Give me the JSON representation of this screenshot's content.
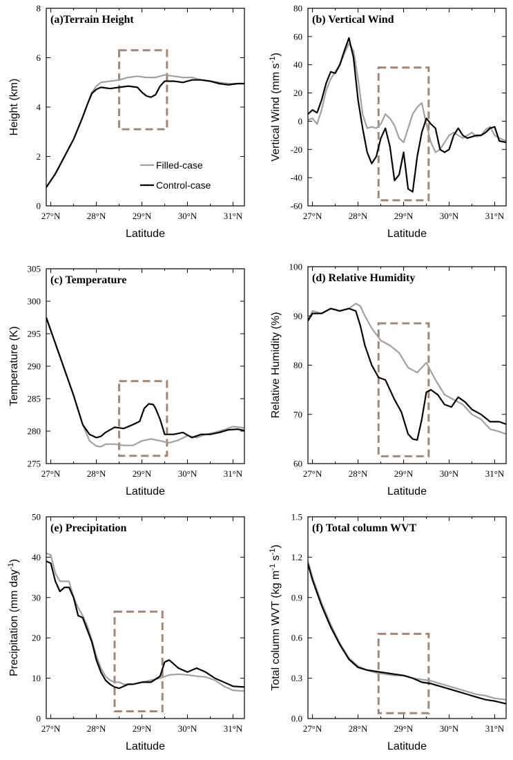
{
  "colors": {
    "filled": "#a0a0a0",
    "control": "#000000",
    "box": "#a58671"
  },
  "chart_data": [
    {
      "type": "line",
      "title": "(a)Terrain Height",
      "xlabel": "Latitude",
      "ylabel": "Height (km)",
      "xlim": [
        26.9,
        31.25
      ],
      "ylim": [
        0,
        8
      ],
      "xticks": [
        27,
        28,
        29,
        30,
        31
      ],
      "xtick_labels": [
        "27°N",
        "28°N",
        "29°N",
        "30°N",
        "31°N"
      ],
      "yticks": [
        0,
        2,
        4,
        6,
        8
      ],
      "ytick_labels": [
        "0",
        "2",
        "4",
        "6",
        "8"
      ],
      "legend": {
        "position": "center-right",
        "entries": [
          "Filled-case",
          "Control-case"
        ]
      },
      "highlight_box": {
        "x": [
          28.5,
          29.55
        ],
        "y": [
          3.1,
          6.3
        ]
      },
      "series": [
        {
          "name": "Filled-case",
          "color": "filled",
          "x": [
            26.9,
            27.1,
            27.3,
            27.5,
            27.7,
            27.8,
            27.9,
            28.0,
            28.1,
            28.3,
            28.5,
            28.7,
            28.9,
            29.1,
            29.3,
            29.5,
            29.7,
            29.9,
            30.1,
            30.3,
            30.5,
            30.7,
            30.9,
            31.1,
            31.25
          ],
          "y": [
            0.75,
            1.3,
            2.0,
            2.7,
            3.6,
            4.1,
            4.6,
            4.85,
            5.0,
            5.05,
            5.1,
            5.2,
            5.25,
            5.2,
            5.2,
            5.3,
            5.25,
            5.2,
            5.2,
            5.1,
            5.05,
            5.0,
            4.95,
            4.95,
            4.95
          ]
        },
        {
          "name": "Control-case",
          "color": "control",
          "x": [
            26.9,
            27.1,
            27.3,
            27.5,
            27.7,
            27.8,
            27.9,
            28.0,
            28.1,
            28.3,
            28.5,
            28.7,
            28.9,
            29.0,
            29.1,
            29.2,
            29.3,
            29.4,
            29.5,
            29.7,
            29.9,
            30.1,
            30.3,
            30.5,
            30.7,
            30.9,
            31.1,
            31.25
          ],
          "y": [
            0.75,
            1.3,
            2.0,
            2.7,
            3.6,
            4.1,
            4.55,
            4.72,
            4.8,
            4.75,
            4.8,
            4.85,
            4.8,
            4.6,
            4.45,
            4.4,
            4.5,
            4.85,
            5.05,
            5.05,
            5.0,
            5.1,
            5.1,
            5.05,
            4.95,
            4.9,
            4.95,
            4.95
          ]
        }
      ]
    },
    {
      "type": "line",
      "title": "(b) Vertical Wind",
      "xlabel": "Latitude",
      "ylabel": "Vertical Wind (mm s",
      "ylabel_sup": "-1",
      "ylabel_end": ")",
      "xlim": [
        26.9,
        31.25
      ],
      "ylim": [
        -60,
        80
      ],
      "xticks": [
        27,
        28,
        29,
        30,
        31
      ],
      "xtick_labels": [
        "27°N",
        "28°N",
        "29°N",
        "30°N",
        "31°N"
      ],
      "yticks": [
        -60,
        -40,
        -20,
        0,
        20,
        40,
        60,
        80
      ],
      "ytick_labels": [
        "-60",
        "-40",
        "-20",
        "0",
        "20",
        "40",
        "60",
        "80"
      ],
      "highlight_box": {
        "x": [
          28.45,
          29.55
        ],
        "y": [
          -56,
          38
        ]
      },
      "series": [
        {
          "name": "Filled-case",
          "color": "filled",
          "x": [
            26.9,
            27.0,
            27.1,
            27.2,
            27.3,
            27.4,
            27.5,
            27.6,
            27.7,
            27.8,
            27.9,
            28.0,
            28.1,
            28.2,
            28.3,
            28.4,
            28.5,
            28.6,
            28.7,
            28.8,
            28.9,
            29.0,
            29.1,
            29.2,
            29.3,
            29.4,
            29.5,
            29.6,
            29.7,
            29.8,
            29.9,
            30.0,
            30.1,
            30.2,
            30.3,
            30.4,
            30.5,
            30.6,
            30.7,
            30.8,
            30.9,
            31.0,
            31.1,
            31.25
          ],
          "y": [
            1,
            2,
            -2,
            8,
            22,
            30,
            35,
            40,
            48,
            55,
            50,
            30,
            5,
            -5,
            -4,
            -5,
            -2,
            5,
            2,
            -3,
            -12,
            -15,
            -5,
            5,
            10,
            13,
            -2,
            -15,
            -22,
            -20,
            -15,
            -10,
            -8,
            -10,
            -12,
            -10,
            -8,
            -11,
            -10,
            -6,
            -4,
            -10,
            -12,
            -14
          ]
        },
        {
          "name": "Control-case",
          "color": "control",
          "x": [
            26.9,
            27.0,
            27.1,
            27.2,
            27.3,
            27.4,
            27.5,
            27.6,
            27.7,
            27.8,
            27.9,
            28.0,
            28.1,
            28.2,
            28.3,
            28.4,
            28.5,
            28.6,
            28.7,
            28.8,
            28.9,
            29.0,
            29.1,
            29.2,
            29.3,
            29.4,
            29.5,
            29.6,
            29.7,
            29.8,
            29.9,
            30.0,
            30.1,
            30.2,
            30.3,
            30.4,
            30.5,
            30.6,
            30.7,
            30.8,
            30.9,
            31.0,
            31.1,
            31.25
          ],
          "y": [
            5,
            8,
            6,
            15,
            27,
            35,
            34,
            40,
            50,
            59,
            45,
            15,
            -5,
            -22,
            -30,
            -25,
            -12,
            -5,
            -18,
            -42,
            -38,
            -22,
            -48,
            -50,
            -25,
            -8,
            2,
            -2,
            -5,
            -20,
            -22,
            -20,
            -10,
            -5,
            -10,
            -12,
            -11,
            -10,
            -10,
            -8,
            -5,
            -4,
            -14,
            -15
          ]
        }
      ]
    },
    {
      "type": "line",
      "title": "(c) Temperature",
      "xlabel": "Latitude",
      "ylabel": "Temperature (K)",
      "xlim": [
        26.9,
        31.25
      ],
      "ylim": [
        275,
        305
      ],
      "xticks": [
        27,
        28,
        29,
        30,
        31
      ],
      "xtick_labels": [
        "27°N",
        "28°N",
        "29°N",
        "30°N",
        "31°N"
      ],
      "yticks": [
        275,
        280,
        285,
        290,
        295,
        300,
        305
      ],
      "ytick_labels": [
        "275",
        "280",
        "285",
        "290",
        "295",
        "300",
        "305"
      ],
      "highlight_box": {
        "x": [
          28.5,
          29.55
        ],
        "y": [
          276.2,
          287.7
        ]
      },
      "series": [
        {
          "name": "Filled-case",
          "color": "filled",
          "x": [
            26.9,
            27.1,
            27.3,
            27.5,
            27.7,
            27.85,
            28.0,
            28.1,
            28.2,
            28.4,
            28.6,
            28.8,
            29.0,
            29.2,
            29.4,
            29.6,
            29.8,
            30.0,
            30.2,
            30.4,
            30.6,
            30.8,
            31.0,
            31.25
          ],
          "y": [
            297.5,
            293.5,
            289.5,
            285.5,
            281,
            278.5,
            277.7,
            277.6,
            278,
            278,
            277.8,
            277.8,
            278.5,
            278.8,
            278.5,
            278.2,
            278.6,
            279.3,
            279.0,
            279.5,
            279.8,
            280.2,
            280.7,
            280.5
          ]
        },
        {
          "name": "Control-case",
          "color": "control",
          "x": [
            26.9,
            27.1,
            27.3,
            27.5,
            27.7,
            27.85,
            28.0,
            28.1,
            28.2,
            28.4,
            28.6,
            28.8,
            28.95,
            29.05,
            29.15,
            29.25,
            29.3,
            29.4,
            29.5,
            29.7,
            29.9,
            30.1,
            30.3,
            30.5,
            30.7,
            30.9,
            31.1,
            31.25
          ],
          "y": [
            297.5,
            293.5,
            289.5,
            285.5,
            281,
            279.5,
            279.0,
            279.2,
            279.8,
            280.6,
            280.4,
            281,
            281.5,
            283.5,
            284.2,
            284.1,
            283.5,
            281.8,
            279.5,
            279.5,
            279.8,
            279.0,
            279.5,
            279.5,
            279.8,
            280.2,
            280.3,
            280.1
          ]
        }
      ]
    },
    {
      "type": "line",
      "title": "(d) Relative Humidity",
      "xlabel": "Latitude",
      "ylabel": "Relative Humidity (%)",
      "xlim": [
        26.9,
        31.25
      ],
      "ylim": [
        60,
        100
      ],
      "xticks": [
        27,
        28,
        29,
        30,
        31
      ],
      "xtick_labels": [
        "27°N",
        "28°N",
        "29°N",
        "30°N",
        "31°N"
      ],
      "yticks": [
        60,
        70,
        80,
        90,
        100
      ],
      "ytick_labels": [
        "60",
        "70",
        "80",
        "90",
        "100"
      ],
      "highlight_box": {
        "x": [
          28.45,
          29.55
        ],
        "y": [
          61.5,
          88.5
        ]
      },
      "series": [
        {
          "name": "Filled-case",
          "color": "filled",
          "x": [
            26.9,
            27.0,
            27.2,
            27.4,
            27.6,
            27.8,
            27.95,
            28.05,
            28.15,
            28.3,
            28.5,
            28.7,
            28.9,
            29.1,
            29.3,
            29.5,
            29.7,
            29.9,
            30.1,
            30.3,
            30.5,
            30.7,
            30.9,
            31.1,
            31.25
          ],
          "y": [
            89,
            91,
            90.5,
            91.5,
            91,
            91.5,
            92.5,
            92,
            90,
            87.5,
            85,
            84,
            82.5,
            79.5,
            78.5,
            80.5,
            77,
            74,
            73,
            72,
            70,
            69,
            67,
            66.5,
            66
          ]
        },
        {
          "name": "Control-case",
          "color": "control",
          "x": [
            26.9,
            27.0,
            27.2,
            27.4,
            27.6,
            27.8,
            27.95,
            28.05,
            28.15,
            28.3,
            28.45,
            28.6,
            28.8,
            28.95,
            29.1,
            29.2,
            29.3,
            29.4,
            29.5,
            29.6,
            29.75,
            29.9,
            30.05,
            30.2,
            30.35,
            30.5,
            30.7,
            30.9,
            31.1,
            31.25
          ],
          "y": [
            89,
            90.5,
            90.5,
            91.5,
            91,
            91.5,
            91,
            88,
            84,
            80,
            77.5,
            77,
            73,
            70.5,
            66,
            65,
            64.8,
            69,
            74.5,
            75,
            74,
            72,
            71.5,
            73.5,
            72.5,
            71,
            70,
            68.5,
            68.5,
            68
          ]
        }
      ]
    },
    {
      "type": "line",
      "title": "(e) Precipitation",
      "xlabel": "Latitude",
      "ylabel": "Precipitation (mm day",
      "ylabel_sup": "-1",
      "ylabel_end": ")",
      "xlim": [
        26.9,
        31.25
      ],
      "ylim": [
        0,
        50
      ],
      "xticks": [
        27,
        28,
        29,
        30,
        31
      ],
      "xtick_labels": [
        "27°N",
        "28°N",
        "29°N",
        "30°N",
        "31°N"
      ],
      "yticks": [
        0,
        10,
        20,
        30,
        40,
        50
      ],
      "ytick_labels": [
        "0",
        "10",
        "20",
        "30",
        "40",
        "50"
      ],
      "highlight_box": {
        "x": [
          28.4,
          29.45
        ],
        "y": [
          1.8,
          26.5
        ]
      },
      "series": [
        {
          "name": "Filled-case",
          "color": "filled",
          "x": [
            26.9,
            27.0,
            27.1,
            27.2,
            27.3,
            27.4,
            27.5,
            27.6,
            27.7,
            27.8,
            27.9,
            28.0,
            28.1,
            28.2,
            28.3,
            28.4,
            28.5,
            28.6,
            28.8,
            29.0,
            29.2,
            29.4,
            29.6,
            29.8,
            30.0,
            30.2,
            30.4,
            30.6,
            30.8,
            31.0,
            31.25
          ],
          "y": [
            41,
            40.5,
            36,
            34,
            34,
            34,
            30,
            27.5,
            25.5,
            23,
            19.5,
            15.5,
            12.5,
            10.5,
            9.5,
            9,
            9,
            8.5,
            8.5,
            9,
            9.5,
            10,
            10.8,
            11,
            10.8,
            10.5,
            10.3,
            9.5,
            8,
            7,
            6.8
          ]
        },
        {
          "name": "Control-case",
          "color": "control",
          "x": [
            26.9,
            27.0,
            27.1,
            27.2,
            27.3,
            27.4,
            27.5,
            27.6,
            27.7,
            27.8,
            27.9,
            28.0,
            28.1,
            28.2,
            28.3,
            28.4,
            28.5,
            28.6,
            28.7,
            28.8,
            29.0,
            29.2,
            29.4,
            29.5,
            29.6,
            29.8,
            30.0,
            30.2,
            30.4,
            30.6,
            30.8,
            31.0,
            31.25
          ],
          "y": [
            39,
            38.5,
            34,
            31.5,
            32.5,
            32.5,
            30,
            25.5,
            25,
            22,
            19,
            14.5,
            11.5,
            9.5,
            8.5,
            7.8,
            7.5,
            8,
            8.5,
            8.5,
            9,
            9,
            10.5,
            14,
            14.5,
            12.5,
            11.5,
            12.5,
            11.5,
            10,
            9,
            8,
            7.8
          ]
        }
      ]
    },
    {
      "type": "line",
      "title": "(f) Total column WVT",
      "xlabel": "Latitude",
      "ylabel": "Total column WVT (kg m",
      "ylabel_sup": "-1",
      "ylabel_mid": " s",
      "ylabel_sup2": "-1",
      "ylabel_end": ")",
      "xlim": [
        26.9,
        31.25
      ],
      "ylim": [
        0,
        1.5
      ],
      "xticks": [
        27,
        28,
        29,
        30,
        31
      ],
      "xtick_labels": [
        "27°N",
        "28°N",
        "29°N",
        "30°N",
        "31°N"
      ],
      "yticks": [
        0.0,
        0.3,
        0.6,
        0.9,
        1.2,
        1.5
      ],
      "ytick_labels": [
        "0.0",
        "0.3",
        "0.6",
        "0.9",
        "1.2",
        "1.5"
      ],
      "highlight_box": {
        "x": [
          28.45,
          29.55
        ],
        "y": [
          0.04,
          0.63
        ]
      },
      "series": [
        {
          "name": "Filled-case",
          "color": "filled",
          "x": [
            26.9,
            27.0,
            27.2,
            27.4,
            27.6,
            27.8,
            28.0,
            28.2,
            28.4,
            28.6,
            28.8,
            29.0,
            29.2,
            29.4,
            29.6,
            29.8,
            30.0,
            30.2,
            30.4,
            30.6,
            30.8,
            31.0,
            31.25
          ],
          "y": [
            1.17,
            1.05,
            0.86,
            0.7,
            0.56,
            0.45,
            0.39,
            0.36,
            0.34,
            0.33,
            0.32,
            0.32,
            0.3,
            0.29,
            0.28,
            0.26,
            0.24,
            0.22,
            0.2,
            0.18,
            0.17,
            0.15,
            0.14
          ]
        },
        {
          "name": "Control-case",
          "color": "control",
          "x": [
            26.9,
            27.0,
            27.2,
            27.4,
            27.6,
            27.8,
            28.0,
            28.2,
            28.4,
            28.6,
            28.8,
            29.0,
            29.2,
            29.4,
            29.6,
            29.8,
            30.0,
            30.2,
            30.4,
            30.6,
            30.8,
            31.0,
            31.25
          ],
          "y": [
            1.15,
            1.03,
            0.84,
            0.68,
            0.55,
            0.44,
            0.38,
            0.36,
            0.35,
            0.34,
            0.33,
            0.32,
            0.3,
            0.27,
            0.26,
            0.24,
            0.22,
            0.2,
            0.18,
            0.16,
            0.14,
            0.13,
            0.11
          ]
        }
      ]
    }
  ]
}
